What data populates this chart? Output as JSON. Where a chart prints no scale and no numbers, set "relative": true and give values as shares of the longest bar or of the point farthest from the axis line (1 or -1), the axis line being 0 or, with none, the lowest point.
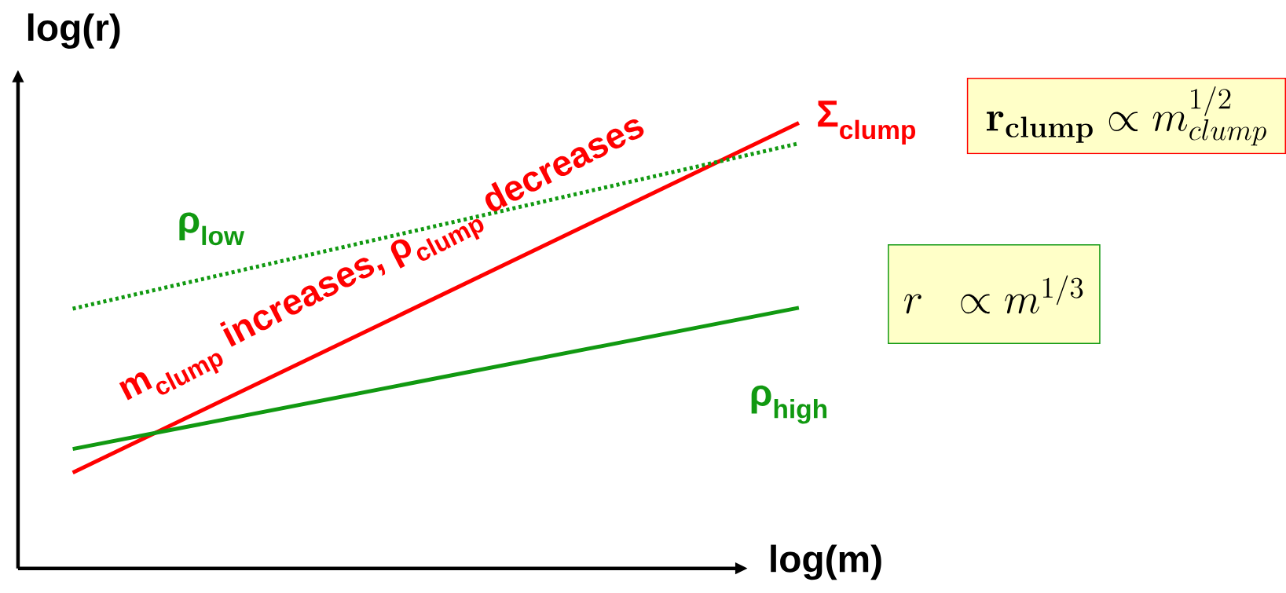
{
  "chart_data": {
    "type": "line",
    "relative": true,
    "xlabel": "log(m)",
    "ylabel": "log(r)",
    "categories": [
      null,
      null
    ],
    "series": [
      {
        "name": "Σ$_{clump}$",
        "color": "#ff0000",
        "line_style": "solid",
        "values": [
          0.215,
          1.0
        ]
      },
      {
        "name": "ρ$_{low}$",
        "color": "#119911",
        "line_style": "dotted",
        "values": [
          0.583,
          0.954
        ]
      },
      {
        "name": "ρ$_{high}$",
        "color": "#119911",
        "line_style": "solid",
        "values": [
          0.268,
          0.585
        ]
      }
    ],
    "annotations": [
      "m$_{clump}$ increases, ρ$_{clump}$ decreases",
      "\\mathbf{r}_{\\mathbf{clump}} \\propto m_{clump}^{1/2}",
      "r \\;\\; \\propto m^{1/3}"
    ]
  }
}
